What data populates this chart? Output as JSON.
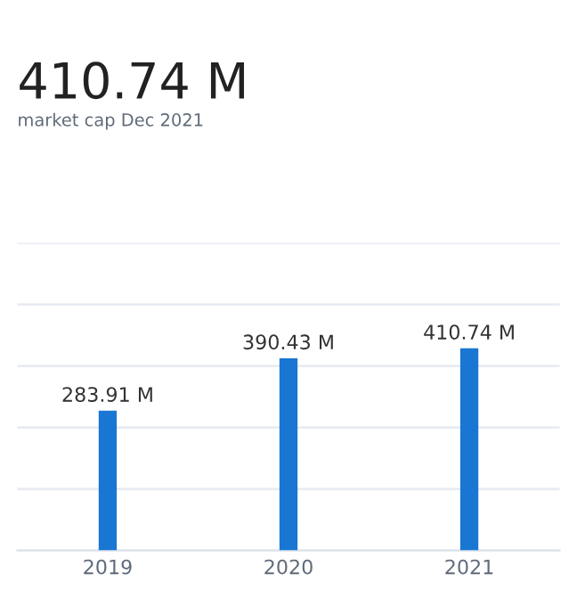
{
  "chart_data": {
    "type": "bar",
    "title": "410.74 M",
    "subtitle": "market cap Dec 2021",
    "categories": [
      "2019",
      "2020",
      "2021"
    ],
    "values": [
      283.91,
      390.43,
      410.74
    ],
    "value_labels": [
      "283.91 M",
      "390.43 M",
      "410.74 M"
    ],
    "color": "#1976d2",
    "ylim": [
      0,
      625
    ],
    "yticks": [
      {
        "value": 0,
        "label": null
      },
      {
        "value": 125,
        "label": null
      },
      {
        "value": 250,
        "label": null
      },
      {
        "value": 375,
        "label": null
      },
      {
        "value": 500,
        "label": null
      },
      {
        "value": 625,
        "label": null
      }
    ],
    "grid": "y",
    "tick_labels": "x"
  }
}
